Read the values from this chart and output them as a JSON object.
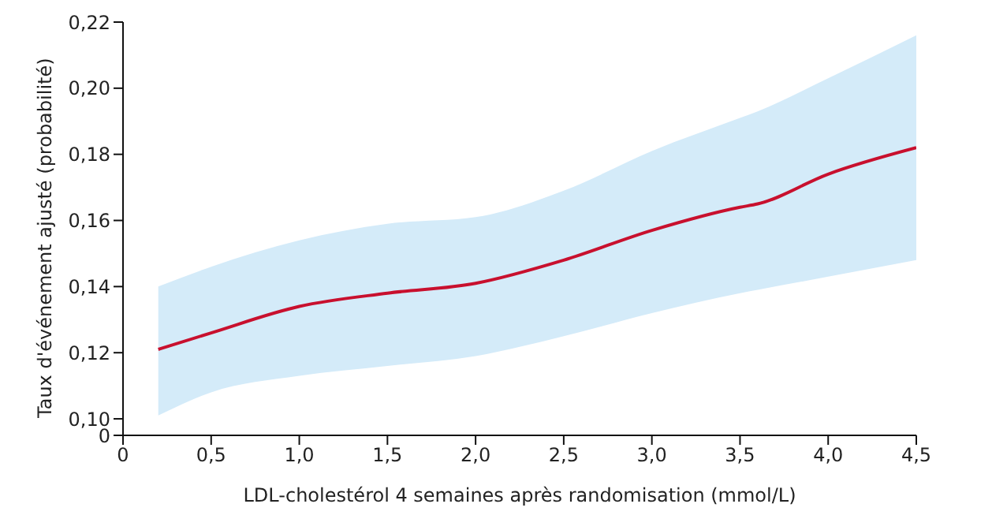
{
  "chart_data": {
    "type": "line",
    "xlabel": "LDL-cholestérol 4 semaines après randomisation (mmol/L)",
    "ylabel": "Taux d'événement ajusté (probabilité)",
    "x": [
      0.2,
      0.5,
      1.0,
      1.5,
      2.0,
      2.5,
      3.0,
      3.5,
      3.6,
      4.0,
      4.5
    ],
    "series": [
      {
        "color": "#c8102e",
        "values": [
          0.121,
          0.126,
          0.134,
          0.138,
          0.141,
          0.148,
          0.157,
          0.164,
          0.165,
          0.174,
          0.182
        ],
        "lower": [
          0.101,
          0.108,
          0.113,
          0.116,
          0.119,
          0.125,
          0.132,
          0.138,
          0.139,
          0.143,
          0.148
        ],
        "upper": [
          0.14,
          0.146,
          0.154,
          0.159,
          0.161,
          0.169,
          0.181,
          0.191,
          0.193,
          0.203,
          0.216
        ]
      }
    ],
    "xlim": [
      0,
      4.5
    ],
    "xticks": [
      0,
      {
        "value": 0.5,
        "label": "0,5"
      },
      {
        "value": 1,
        "label": "1,0"
      },
      {
        "value": 1.5,
        "label": "1,5"
      },
      {
        "value": 2,
        "label": "2,0"
      },
      {
        "value": 2.5,
        "label": "2,5"
      },
      {
        "value": 3,
        "label": "3,0"
      },
      {
        "value": 3.5,
        "label": "3,5"
      },
      {
        "value": 4,
        "label": "4,0"
      },
      {
        "value": 4.5,
        "label": "4,5"
      }
    ],
    "ylim": [
      0.095,
      0.22
    ],
    "yticks": [
      {
        "value": 0.095,
        "label": "0"
      },
      {
        "value": 0.1,
        "label": "0,10"
      },
      {
        "value": 0.12,
        "label": "0,12"
      },
      {
        "value": 0.14,
        "label": "0,14"
      },
      {
        "value": 0.16,
        "label": "0,16"
      },
      {
        "value": 0.18,
        "label": "0,18"
      },
      {
        "value": 0.2,
        "label": "0,20"
      },
      {
        "value": 0.22,
        "label": "0,22"
      }
    ],
    "grid": false,
    "legend": false,
    "marker": "none",
    "line_style": "solid"
  }
}
